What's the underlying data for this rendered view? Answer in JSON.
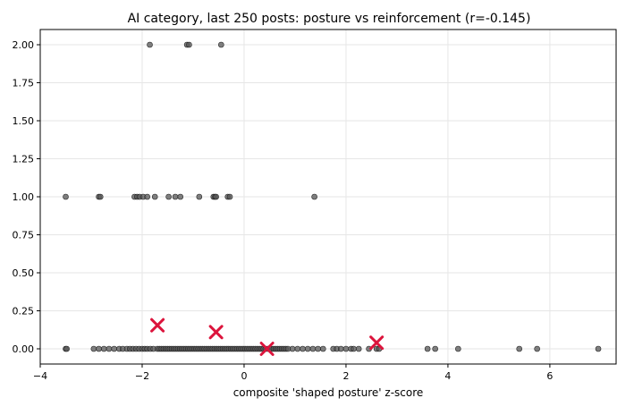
{
  "chart_data": {
    "type": "scatter",
    "title": "AI category, last 250 posts: posture vs reinforcement (r=-0.145)",
    "xlabel": "composite 'shaped posture' z-score",
    "ylabel": "",
    "xlim": [
      -4,
      7.3
    ],
    "ylim": [
      -0.1,
      2.1
    ],
    "xticks": [
      -4,
      -2,
      0,
      2,
      4,
      6
    ],
    "xtick_labels": [
      "−4",
      "−2",
      "0",
      "2",
      "4",
      "6"
    ],
    "yticks": [
      0.0,
      0.25,
      0.5,
      0.75,
      1.0,
      1.25,
      1.5,
      1.75,
      2.0
    ],
    "ytick_labels": [
      "0.00",
      "0.25",
      "0.50",
      "0.75",
      "1.00",
      "1.25",
      "1.50",
      "1.75",
      "2.00"
    ],
    "grid": true,
    "point_color": "#555555",
    "marker_color": "#dc143c",
    "series": [
      {
        "marker": "circle",
        "x": [
          -3.5,
          -3.48,
          -2.95,
          -2.85,
          -2.75,
          -2.65,
          -2.55,
          -2.45,
          -2.38,
          -2.3,
          -2.24,
          -2.18,
          -2.12,
          -2.06,
          -2.0,
          -1.95,
          -1.9,
          -1.84,
          -1.78,
          -1.7,
          -1.66,
          -1.62,
          -1.58,
          -1.54,
          -1.5,
          -1.46,
          -1.42,
          -1.38,
          -1.34,
          -1.3,
          -1.26,
          -1.22,
          -1.18,
          -1.14,
          -1.1,
          -1.06,
          -1.02,
          -0.98,
          -0.94,
          -0.9,
          -0.86,
          -0.82,
          -0.78,
          -0.74,
          -0.7,
          -0.66,
          -0.62,
          -0.58,
          -0.54,
          -0.5,
          -0.46,
          -0.42,
          -0.38,
          -0.34,
          -0.3,
          -0.26,
          -0.22,
          -0.18,
          -0.14,
          -0.1,
          -0.06,
          -0.02,
          0.02,
          0.06,
          0.1,
          0.14,
          0.18,
          0.22,
          0.26,
          0.3,
          0.34,
          0.38,
          0.42,
          0.46,
          0.5,
          0.54,
          0.58,
          0.62,
          0.66,
          0.7,
          0.74,
          0.78,
          0.82,
          0.86,
          0.95,
          1.05,
          1.15,
          1.25,
          1.35,
          1.45,
          1.55,
          1.75,
          1.82,
          1.9,
          2.0,
          2.1,
          2.15,
          2.25,
          2.45,
          2.6,
          2.65,
          3.6,
          3.75,
          4.2,
          5.4,
          5.75,
          6.95,
          -3.5,
          -2.85,
          -2.82,
          -2.15,
          -2.1,
          -2.05,
          -1.98,
          -1.9,
          -1.75,
          -1.48,
          -1.35,
          -1.25,
          -0.88,
          -0.6,
          -0.57,
          -0.55,
          -0.32,
          -0.28,
          1.38,
          -1.85,
          -1.12,
          -1.08,
          -0.45
        ],
        "y": [
          0,
          0,
          0,
          0,
          0,
          0,
          0,
          0,
          0,
          0,
          0,
          0,
          0,
          0,
          0,
          0,
          0,
          0,
          0,
          0,
          0,
          0,
          0,
          0,
          0,
          0,
          0,
          0,
          0,
          0,
          0,
          0,
          0,
          0,
          0,
          0,
          0,
          0,
          0,
          0,
          0,
          0,
          0,
          0,
          0,
          0,
          0,
          0,
          0,
          0,
          0,
          0,
          0,
          0,
          0,
          0,
          0,
          0,
          0,
          0,
          0,
          0,
          0,
          0,
          0,
          0,
          0,
          0,
          0,
          0,
          0,
          0,
          0,
          0,
          0,
          0,
          0,
          0,
          0,
          0,
          0,
          0,
          0,
          0,
          0,
          0,
          0,
          0,
          0,
          0,
          0,
          0,
          0,
          0,
          0,
          0,
          0,
          0,
          0,
          0,
          0,
          0,
          0,
          0,
          0,
          0,
          0,
          1,
          1,
          1,
          1,
          1,
          1,
          1,
          1,
          1,
          1,
          1,
          1,
          1,
          1,
          1,
          1,
          1,
          1,
          1,
          2,
          2,
          2,
          2
        ]
      },
      {
        "marker": "x",
        "x": [
          -1.7,
          -0.55,
          0.45,
          2.6
        ],
        "y": [
          0.155,
          0.11,
          0.0,
          0.04
        ]
      }
    ]
  }
}
